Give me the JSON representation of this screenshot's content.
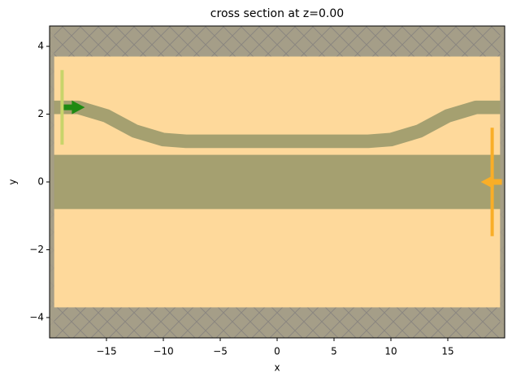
{
  "chart_data": {
    "type": "structure",
    "title": "cross section at z=0.00",
    "x_label": "x",
    "y_label": "y",
    "xlim": [
      -20,
      20
    ],
    "ylim": [
      -4.6,
      4.6
    ],
    "xticks": [
      {
        "value": -15,
        "label": "−15"
      },
      {
        "value": -10,
        "label": "−10"
      },
      {
        "value": -5,
        "label": "−5"
      },
      0,
      5,
      10,
      15
    ],
    "yticks": [
      {
        "value": -4,
        "label": "−4"
      },
      {
        "value": -2,
        "label": "−2"
      },
      0,
      2,
      4
    ],
    "simulation": {
      "x": [
        -19.6,
        19.6
      ],
      "y": [
        -3.7,
        3.7
      ],
      "color": "#fed99b",
      "pml_color": "#a59e88"
    },
    "waveguide": {
      "y": [
        -0.8,
        0.8
      ],
      "color": "#a5a070"
    },
    "bend": {
      "x": [
        -20,
        -17.5,
        -15,
        -12.5,
        -10,
        -8,
        8,
        10,
        12.5,
        15,
        17.5,
        20
      ],
      "y": [
        2.2,
        2.2,
        1.95,
        1.5,
        1.25,
        1.2,
        1.2,
        1.25,
        1.5,
        1.95,
        2.2,
        2.2
      ],
      "width": 0.4,
      "color": "#a5a070"
    },
    "source": {
      "x": -18.9,
      "y": [
        1.1,
        3.3
      ],
      "color": "#c8d46a",
      "arrow_color": "#1f8a12"
    },
    "monitor": {
      "x": 18.9,
      "y": [
        -1.6,
        1.6
      ],
      "color": "#f9ae27"
    }
  }
}
